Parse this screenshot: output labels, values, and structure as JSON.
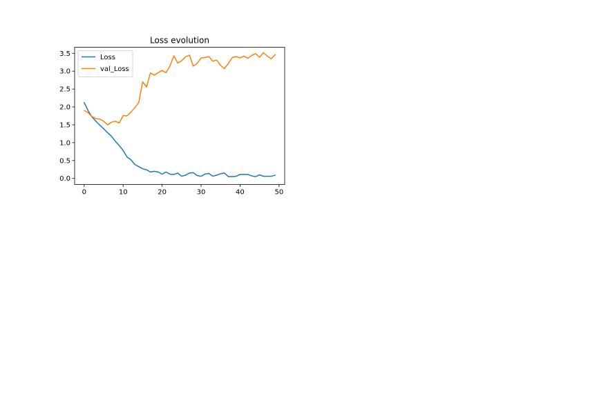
{
  "chart_data": {
    "type": "line",
    "title": "Loss evolution",
    "xlabel": "",
    "ylabel": "",
    "xlim": [
      -2.45,
      51.45
    ],
    "ylim": [
      -0.17,
      3.67
    ],
    "grid": false,
    "legend_position": "upper-left",
    "x_ticks": [
      0,
      10,
      20,
      30,
      40,
      50
    ],
    "x_tick_labels": [
      "0",
      "10",
      "20",
      "30",
      "40",
      "50"
    ],
    "y_ticks": [
      0.0,
      0.5,
      1.0,
      1.5,
      2.0,
      2.5,
      3.0,
      3.5
    ],
    "y_tick_labels": [
      "0.0",
      "0.5",
      "1.0",
      "1.5",
      "2.0",
      "2.5",
      "3.0",
      "3.5"
    ],
    "x": [
      0,
      1,
      2,
      3,
      4,
      5,
      6,
      7,
      8,
      9,
      10,
      11,
      12,
      13,
      14,
      15,
      16,
      17,
      18,
      19,
      20,
      21,
      22,
      23,
      24,
      25,
      26,
      27,
      28,
      29,
      30,
      31,
      32,
      33,
      34,
      35,
      36,
      37,
      38,
      39,
      40,
      41,
      42,
      43,
      44,
      45,
      46,
      47,
      48,
      49
    ],
    "series": [
      {
        "name": "Loss",
        "color": "#1f77b4",
        "values": [
          2.12,
          1.9,
          1.72,
          1.6,
          1.49,
          1.39,
          1.28,
          1.18,
          1.04,
          0.92,
          0.78,
          0.6,
          0.52,
          0.39,
          0.33,
          0.27,
          0.24,
          0.18,
          0.2,
          0.18,
          0.12,
          0.18,
          0.12,
          0.11,
          0.15,
          0.06,
          0.09,
          0.15,
          0.16,
          0.08,
          0.06,
          0.12,
          0.14,
          0.06,
          0.09,
          0.13,
          0.15,
          0.05,
          0.05,
          0.06,
          0.11,
          0.11,
          0.11,
          0.07,
          0.05,
          0.1,
          0.06,
          0.06,
          0.06,
          0.09
        ]
      },
      {
        "name": "val_Loss",
        "color": "#ff7f0e",
        "values": [
          1.9,
          1.84,
          1.73,
          1.67,
          1.66,
          1.6,
          1.5,
          1.57,
          1.6,
          1.55,
          1.76,
          1.75,
          1.85,
          1.98,
          2.12,
          2.7,
          2.56,
          2.95,
          2.89,
          2.96,
          3.02,
          2.96,
          3.14,
          3.43,
          3.23,
          3.29,
          3.4,
          3.45,
          3.14,
          3.22,
          3.37,
          3.38,
          3.41,
          3.28,
          3.31,
          3.16,
          3.07,
          3.22,
          3.38,
          3.41,
          3.37,
          3.42,
          3.36,
          3.44,
          3.49,
          3.39,
          3.52,
          3.42,
          3.35,
          3.46
        ]
      }
    ]
  }
}
